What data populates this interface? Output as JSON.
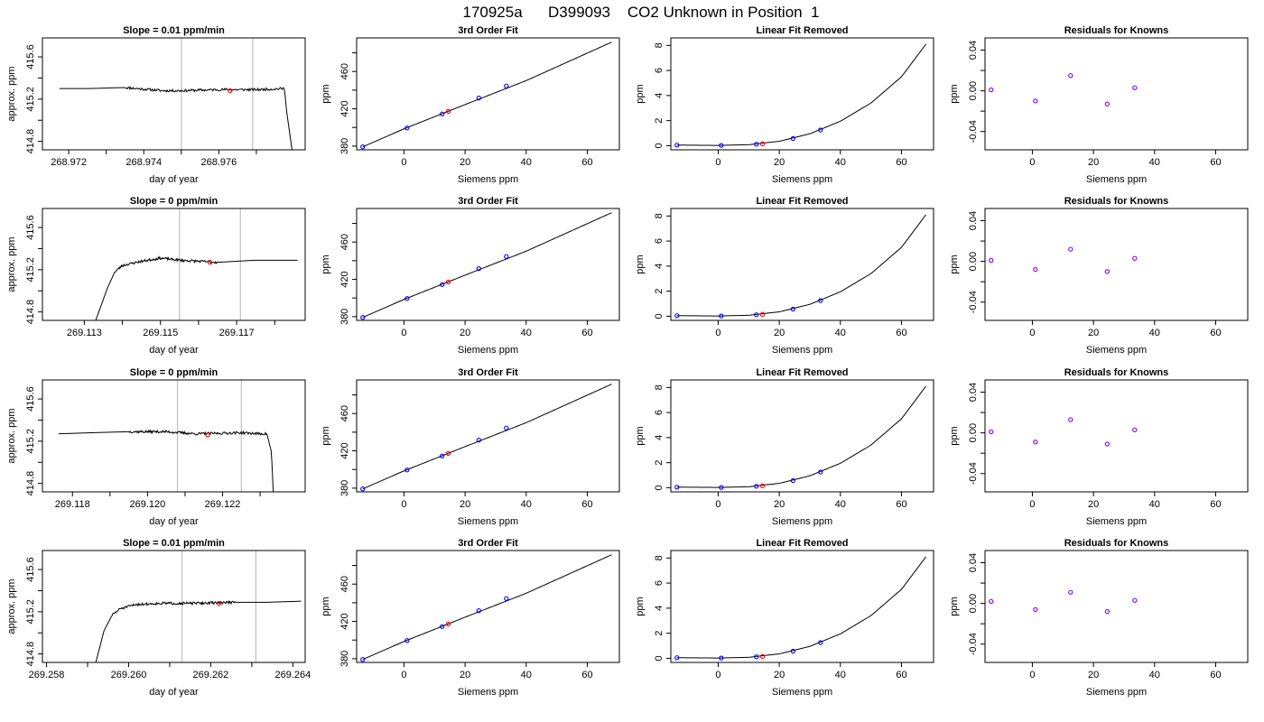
{
  "page": {
    "title": "170925a      D399093    CO2 Unknown in Position  1"
  },
  "colors": {
    "line": "#000000",
    "known_points": "#0000ff",
    "unknown_point": "#ff0000",
    "residual_points": "#8000ff",
    "vertical_markers": "#c0c0c0"
  },
  "chart_data": [
    {
      "type": "line",
      "row": 1,
      "col": 1,
      "title": "Slope =  0.01  ppm/min",
      "xlabel": "day of year",
      "ylabel": "approx. ppm",
      "xlim": [
        268.9713,
        268.9783
      ],
      "ylim": [
        414.72,
        415.78
      ],
      "xticks": [
        268.972,
        268.974,
        268.976
      ],
      "xtick_labels": [
        "268.972",
        "268.974",
        "268.976"
      ],
      "xticks_minor": [
        268.973,
        268.975,
        268.977
      ],
      "yticks": [
        414.8,
        415.2,
        415.6
      ],
      "ytick_labels": [
        "414.8",
        "415.2",
        "415.6"
      ],
      "yticks_minor": [
        415.0,
        415.4
      ],
      "series": [
        {
          "x": [
            268.97175,
            268.9725,
            268.9735,
            268.9745,
            268.975,
            268.976,
            268.977,
            268.97775,
            268.9778,
            268.97795
          ],
          "y": [
            415.3,
            415.3,
            415.31,
            415.28,
            415.28,
            415.29,
            415.29,
            415.3,
            415.1,
            414.72
          ]
        }
      ],
      "noise_amp": 0.012,
      "seed": 11,
      "vlines": [
        268.975,
        268.9769
      ],
      "unknown_point": [
        268.9763,
        415.28
      ]
    },
    {
      "type": "scatter",
      "row": 1,
      "col": 2,
      "title": "3rd Order Fit",
      "xlabel": "Siemens ppm",
      "ylabel": "ppm",
      "xlim": [
        -15.5,
        70.5
      ],
      "ylim": [
        376,
        496
      ],
      "xticks": [
        0,
        20,
        40,
        60
      ],
      "xtick_labels": [
        "0",
        "20",
        "40",
        "60"
      ],
      "yticks": [
        380,
        420,
        460
      ],
      "ytick_labels": [
        "380",
        "420",
        "460"
      ],
      "yticks_minor": [
        400,
        440,
        480
      ],
      "curve": {
        "x": [
          -13.5,
          0,
          20,
          40,
          68
        ],
        "y": [
          379.2,
          398.5,
          424.5,
          450.2,
          491.5
        ]
      },
      "known_points": {
        "x": [
          -13.5,
          1,
          12.5,
          24.5,
          33.5
        ],
        "y": [
          379.2,
          399.5,
          414.5,
          431.5,
          444.5
        ]
      },
      "unknown_point": [
        14.5,
        417.2
      ]
    },
    {
      "type": "scatter",
      "row": 1,
      "col": 3,
      "title": "Linear Fit Removed",
      "xlabel": "Siemens ppm",
      "ylabel": "ppm",
      "xlim": [
        -15.5,
        70.5
      ],
      "ylim": [
        -0.33,
        8.6
      ],
      "xticks": [
        0,
        20,
        40,
        60
      ],
      "xtick_labels": [
        "0",
        "20",
        "40",
        "60"
      ],
      "yticks": [
        0,
        2,
        4,
        6,
        8
      ],
      "ytick_labels": [
        "0",
        "2",
        "4",
        "6",
        "8"
      ],
      "curve": {
        "x": [
          -13.5,
          0,
          10,
          20,
          30,
          40,
          50,
          60,
          68
        ],
        "y": [
          0.05,
          0.02,
          0.08,
          0.35,
          0.95,
          1.95,
          3.4,
          5.5,
          8.1
        ]
      },
      "known_points": {
        "x": [
          -13.5,
          1,
          12.5,
          24.5,
          33.5
        ],
        "y": [
          0.05,
          0.02,
          0.12,
          0.57,
          1.25
        ]
      },
      "unknown_point": [
        14.5,
        0.15
      ]
    },
    {
      "type": "scatter",
      "row": 1,
      "col": 4,
      "title": "Residuals for Knowns",
      "xlabel": "Siemens ppm",
      "ylabel": "ppm",
      "xlim": [
        -15.5,
        70.5
      ],
      "ylim": [
        -0.058,
        0.052
      ],
      "xticks": [
        0,
        20,
        40,
        60
      ],
      "xtick_labels": [
        "0",
        "20",
        "40",
        "60"
      ],
      "yticks": [
        -0.04,
        0.0,
        0.04
      ],
      "ytick_labels": [
        "-0.04",
        "0.00",
        "0.04"
      ],
      "yticks_minor": [
        -0.02,
        0.02
      ],
      "known_points": {
        "x": [
          -13.5,
          1,
          12.5,
          24.5,
          33.5
        ],
        "y": [
          0.001,
          -0.01,
          0.015,
          -0.013,
          0.003
        ]
      }
    },
    {
      "type": "line",
      "row": 2,
      "col": 1,
      "title": "Slope =  0  ppm/min",
      "xlabel": "day of year",
      "ylabel": "approx. ppm",
      "xlim": [
        269.1119,
        269.1188
      ],
      "ylim": [
        414.72,
        415.78
      ],
      "xticks": [
        269.113,
        269.115,
        269.117
      ],
      "xtick_labels": [
        "269.113",
        "269.115",
        "269.117"
      ],
      "xticks_minor": [
        269.114,
        269.116,
        269.118
      ],
      "yticks": [
        414.8,
        415.2,
        415.6
      ],
      "ytick_labels": [
        "414.8",
        "415.2",
        "415.6"
      ],
      "yticks_minor": [
        415.0,
        415.4
      ],
      "series": [
        {
          "x": [
            269.1133,
            269.1136,
            269.1138,
            269.114,
            269.1145,
            269.115,
            269.1155,
            269.1165,
            269.1175,
            269.1186
          ],
          "y": [
            414.72,
            415.02,
            415.18,
            415.24,
            415.28,
            415.31,
            415.29,
            415.27,
            415.29,
            415.29
          ]
        }
      ],
      "noise_amp": 0.012,
      "seed": 23,
      "vlines": [
        269.1155,
        269.1171
      ],
      "unknown_point": [
        269.1163,
        415.27
      ]
    },
    {
      "type": "scatter",
      "row": 2,
      "col": 2,
      "title": "3rd Order Fit",
      "xlabel": "Siemens ppm",
      "ylabel": "ppm",
      "xlim": [
        -15.5,
        70.5
      ],
      "ylim": [
        376,
        496
      ],
      "xticks": [
        0,
        20,
        40,
        60
      ],
      "xtick_labels": [
        "0",
        "20",
        "40",
        "60"
      ],
      "yticks": [
        380,
        420,
        460
      ],
      "ytick_labels": [
        "380",
        "420",
        "460"
      ],
      "yticks_minor": [
        400,
        440,
        480
      ],
      "curve": {
        "x": [
          -13.5,
          0,
          20,
          40,
          68
        ],
        "y": [
          379.2,
          398.5,
          424.5,
          450.2,
          491.5
        ]
      },
      "known_points": {
        "x": [
          -13.5,
          1,
          12.5,
          24.5,
          33.5
        ],
        "y": [
          379.2,
          399.5,
          414.5,
          431.5,
          444.5
        ]
      },
      "unknown_point": [
        14.5,
        417.2
      ]
    },
    {
      "type": "scatter",
      "row": 2,
      "col": 3,
      "title": "Linear Fit Removed",
      "xlabel": "Siemens ppm",
      "ylabel": "ppm",
      "xlim": [
        -15.5,
        70.5
      ],
      "ylim": [
        -0.33,
        8.6
      ],
      "xticks": [
        0,
        20,
        40,
        60
      ],
      "xtick_labels": [
        "0",
        "20",
        "40",
        "60"
      ],
      "yticks": [
        0,
        2,
        4,
        6,
        8
      ],
      "ytick_labels": [
        "0",
        "2",
        "4",
        "6",
        "8"
      ],
      "curve": {
        "x": [
          -13.5,
          0,
          10,
          20,
          30,
          40,
          50,
          60,
          68
        ],
        "y": [
          0.05,
          0.02,
          0.08,
          0.35,
          0.95,
          1.95,
          3.4,
          5.5,
          8.1
        ]
      },
      "known_points": {
        "x": [
          -13.5,
          1,
          12.5,
          24.5,
          33.5
        ],
        "y": [
          0.05,
          0.02,
          0.12,
          0.57,
          1.25
        ]
      },
      "unknown_point": [
        14.5,
        0.15
      ]
    },
    {
      "type": "scatter",
      "row": 2,
      "col": 4,
      "title": "Residuals for Knowns",
      "xlabel": "Siemens ppm",
      "ylabel": "ppm",
      "xlim": [
        -15.5,
        70.5
      ],
      "ylim": [
        -0.058,
        0.052
      ],
      "xticks": [
        0,
        20,
        40,
        60
      ],
      "xtick_labels": [
        "0",
        "20",
        "40",
        "60"
      ],
      "yticks": [
        -0.04,
        0.0,
        0.04
      ],
      "ytick_labels": [
        "-0.04",
        "0.00",
        "0.04"
      ],
      "yticks_minor": [
        -0.02,
        0.02
      ],
      "known_points": {
        "x": [
          -13.5,
          1,
          12.5,
          24.5,
          33.5
        ],
        "y": [
          0.001,
          -0.008,
          0.012,
          -0.01,
          0.003
        ]
      }
    },
    {
      "type": "line",
      "row": 3,
      "col": 1,
      "title": "Slope =  0  ppm/min",
      "xlabel": "day of year",
      "ylabel": "approx. ppm",
      "xlim": [
        269.1172,
        269.1242
      ],
      "ylim": [
        414.72,
        415.78
      ],
      "xticks": [
        269.118,
        269.12,
        269.122
      ],
      "xtick_labels": [
        "269.118",
        "269.120",
        "269.122"
      ],
      "xticks_minor": [
        269.119,
        269.121,
        269.123
      ],
      "yticks": [
        414.8,
        415.2,
        415.6
      ],
      "ytick_labels": [
        "414.8",
        "415.2",
        "415.6"
      ],
      "yticks_minor": [
        415.0,
        415.4
      ],
      "series": [
        {
          "x": [
            269.11763,
            269.1185,
            269.1195,
            269.1205,
            269.1213,
            269.1225,
            269.123,
            269.12318,
            269.1233,
            269.12335
          ],
          "y": [
            415.27,
            415.28,
            415.29,
            415.29,
            415.27,
            415.28,
            415.27,
            415.27,
            415.1,
            414.72
          ]
        }
      ],
      "noise_amp": 0.012,
      "seed": 37,
      "vlines": [
        269.1208,
        269.1225
      ],
      "unknown_point": [
        269.1216,
        415.26
      ]
    },
    {
      "type": "scatter",
      "row": 3,
      "col": 2,
      "title": "3rd Order Fit",
      "xlabel": "Siemens ppm",
      "ylabel": "ppm",
      "xlim": [
        -15.5,
        70.5
      ],
      "ylim": [
        376,
        496
      ],
      "xticks": [
        0,
        20,
        40,
        60
      ],
      "xtick_labels": [
        "0",
        "20",
        "40",
        "60"
      ],
      "yticks": [
        380,
        420,
        460
      ],
      "ytick_labels": [
        "380",
        "420",
        "460"
      ],
      "yticks_minor": [
        400,
        440,
        480
      ],
      "curve": {
        "x": [
          -13.5,
          0,
          20,
          40,
          68
        ],
        "y": [
          379.2,
          398.5,
          424.5,
          450.2,
          491.5
        ]
      },
      "known_points": {
        "x": [
          -13.5,
          1,
          12.5,
          24.5,
          33.5
        ],
        "y": [
          379.2,
          399.5,
          414.5,
          431.5,
          444.5
        ]
      },
      "unknown_point": [
        14.5,
        417.2
      ]
    },
    {
      "type": "scatter",
      "row": 3,
      "col": 3,
      "title": "Linear Fit Removed",
      "xlabel": "Siemens ppm",
      "ylabel": "ppm",
      "xlim": [
        -15.5,
        70.5
      ],
      "ylim": [
        -0.33,
        8.6
      ],
      "xticks": [
        0,
        20,
        40,
        60
      ],
      "xtick_labels": [
        "0",
        "20",
        "40",
        "60"
      ],
      "yticks": [
        0,
        2,
        4,
        6,
        8
      ],
      "ytick_labels": [
        "0",
        "2",
        "4",
        "6",
        "8"
      ],
      "curve": {
        "x": [
          -13.5,
          0,
          10,
          20,
          30,
          40,
          50,
          60,
          68
        ],
        "y": [
          0.05,
          0.02,
          0.08,
          0.35,
          0.95,
          1.95,
          3.4,
          5.5,
          8.1
        ]
      },
      "known_points": {
        "x": [
          -13.5,
          1,
          12.5,
          24.5,
          33.5
        ],
        "y": [
          0.05,
          0.02,
          0.12,
          0.57,
          1.25
        ]
      },
      "unknown_point": [
        14.5,
        0.15
      ]
    },
    {
      "type": "scatter",
      "row": 3,
      "col": 4,
      "title": "Residuals for Knowns",
      "xlabel": "Siemens ppm",
      "ylabel": "ppm",
      "xlim": [
        -15.5,
        70.5
      ],
      "ylim": [
        -0.058,
        0.052
      ],
      "xticks": [
        0,
        20,
        40,
        60
      ],
      "xtick_labels": [
        "0",
        "20",
        "40",
        "60"
      ],
      "yticks": [
        -0.04,
        0.0,
        0.04
      ],
      "ytick_labels": [
        "-0.04",
        "0.00",
        "0.04"
      ],
      "yticks_minor": [
        -0.02,
        0.02
      ],
      "known_points": {
        "x": [
          -13.5,
          1,
          12.5,
          24.5,
          33.5
        ],
        "y": [
          0.001,
          -0.009,
          0.013,
          -0.011,
          0.003
        ]
      }
    },
    {
      "type": "line",
      "row": 4,
      "col": 1,
      "title": "Slope =  0.01  ppm/min",
      "xlabel": "day of year",
      "ylabel": "approx. ppm",
      "xlim": [
        269.2579,
        269.2643
      ],
      "ylim": [
        414.72,
        415.78
      ],
      "xticks": [
        269.258,
        269.26,
        269.262,
        269.264
      ],
      "xtick_labels": [
        "269.258",
        "269.260",
        "269.262",
        "269.264"
      ],
      "xticks_minor": [
        269.259,
        269.261,
        269.263
      ],
      "yticks": [
        414.8,
        415.2,
        415.6
      ],
      "ytick_labels": [
        "414.8",
        "415.2",
        "415.6"
      ],
      "yticks_minor": [
        415.0,
        415.4
      ],
      "series": [
        {
          "x": [
            269.2592,
            269.2594,
            269.2596,
            269.2598,
            269.2602,
            269.2608,
            269.2616,
            269.2626,
            269.2634,
            269.2642
          ],
          "y": [
            414.72,
            415.02,
            415.17,
            415.23,
            415.27,
            415.28,
            415.28,
            415.29,
            415.29,
            415.3
          ]
        }
      ],
      "noise_amp": 0.012,
      "seed": 51,
      "vlines": [
        269.2613,
        269.2631
      ],
      "unknown_point": [
        269.2622,
        415.28
      ]
    },
    {
      "type": "scatter",
      "row": 4,
      "col": 2,
      "title": "3rd Order Fit",
      "xlabel": "Siemens ppm",
      "ylabel": "ppm",
      "xlim": [
        -15.5,
        70.5
      ],
      "ylim": [
        376,
        496
      ],
      "xticks": [
        0,
        20,
        40,
        60
      ],
      "xtick_labels": [
        "0",
        "20",
        "40",
        "60"
      ],
      "yticks": [
        380,
        420,
        460
      ],
      "ytick_labels": [
        "380",
        "420",
        "460"
      ],
      "yticks_minor": [
        400,
        440,
        480
      ],
      "curve": {
        "x": [
          -13.5,
          0,
          20,
          40,
          68
        ],
        "y": [
          379.2,
          398.5,
          424.5,
          450.2,
          491.5
        ]
      },
      "known_points": {
        "x": [
          -13.5,
          1,
          12.5,
          24.5,
          33.5
        ],
        "y": [
          379.2,
          399.5,
          414.5,
          431.5,
          444.5
        ]
      },
      "unknown_point": [
        14.5,
        417.2
      ]
    },
    {
      "type": "scatter",
      "row": 4,
      "col": 3,
      "title": "Linear Fit Removed",
      "xlabel": "Siemens ppm",
      "ylabel": "ppm",
      "xlim": [
        -15.5,
        70.5
      ],
      "ylim": [
        -0.33,
        8.6
      ],
      "xticks": [
        0,
        20,
        40,
        60
      ],
      "xtick_labels": [
        "0",
        "20",
        "40",
        "60"
      ],
      "yticks": [
        0,
        2,
        4,
        6,
        8
      ],
      "ytick_labels": [
        "0",
        "2",
        "4",
        "6",
        "8"
      ],
      "curve": {
        "x": [
          -13.5,
          0,
          10,
          20,
          30,
          40,
          50,
          60,
          68
        ],
        "y": [
          0.05,
          0.02,
          0.08,
          0.35,
          0.95,
          1.95,
          3.4,
          5.5,
          8.1
        ]
      },
      "known_points": {
        "x": [
          -13.5,
          1,
          12.5,
          24.5,
          33.5
        ],
        "y": [
          0.05,
          0.02,
          0.12,
          0.57,
          1.25
        ]
      },
      "unknown_point": [
        14.5,
        0.15
      ]
    },
    {
      "type": "scatter",
      "row": 4,
      "col": 4,
      "title": "Residuals for Knowns",
      "xlabel": "Siemens ppm",
      "ylabel": "ppm",
      "xlim": [
        -15.5,
        70.5
      ],
      "ylim": [
        -0.058,
        0.052
      ],
      "xticks": [
        0,
        20,
        40,
        60
      ],
      "xtick_labels": [
        "0",
        "20",
        "40",
        "60"
      ],
      "yticks": [
        -0.04,
        0.0,
        0.04
      ],
      "ytick_labels": [
        "-0.04",
        "0.00",
        "0.04"
      ],
      "yticks_minor": [
        -0.02,
        0.02
      ],
      "known_points": {
        "x": [
          -13.5,
          1,
          12.5,
          24.5,
          33.5
        ],
        "y": [
          0.002,
          -0.006,
          0.011,
          -0.008,
          0.003
        ]
      }
    }
  ]
}
